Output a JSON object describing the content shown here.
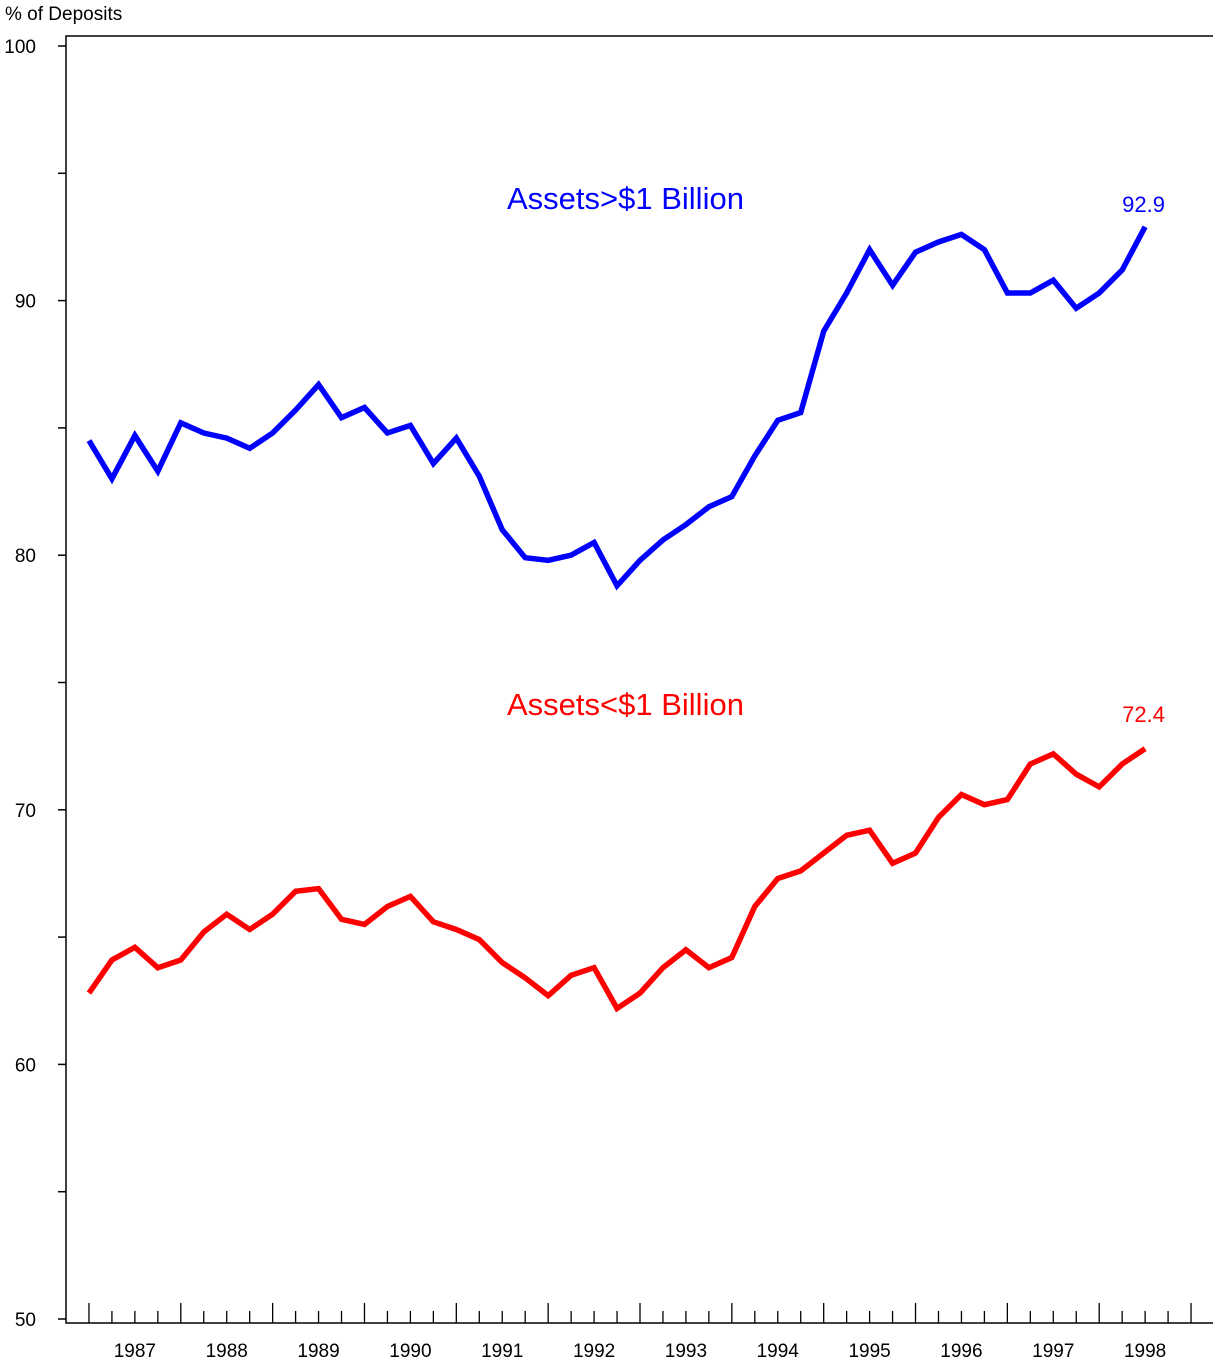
{
  "chart_data": {
    "type": "line",
    "ylabel": "% of Deposits",
    "ylim": [
      50,
      100
    ],
    "y_ticks_major": [
      50,
      60,
      70,
      80,
      90,
      100
    ],
    "y_ticks_minor": [
      55,
      65,
      75,
      85,
      95
    ],
    "xlim": [
      1986.5,
      1999.0
    ],
    "x_year_labels": [
      "1987",
      "1988",
      "1989",
      "1990",
      "1991",
      "1992",
      "1993",
      "1994",
      "1995",
      "1996",
      "1997",
      "1998"
    ],
    "grid": false,
    "series": [
      {
        "name": "Assets>$1 Billion",
        "color": "#0000ff",
        "end_label": "92.9",
        "x": [
          1986.75,
          1987.0,
          1987.25,
          1987.5,
          1987.75,
          1988.0,
          1988.25,
          1988.5,
          1988.75,
          1989.0,
          1989.25,
          1989.5,
          1989.75,
          1990.0,
          1990.25,
          1990.5,
          1990.75,
          1991.0,
          1991.25,
          1991.5,
          1991.75,
          1992.0,
          1992.25,
          1992.5,
          1992.75,
          1993.0,
          1993.25,
          1993.5,
          1993.75,
          1994.0,
          1994.25,
          1994.5,
          1994.75,
          1995.0,
          1995.25,
          1995.5,
          1995.75,
          1996.0,
          1996.25,
          1996.5,
          1996.75,
          1997.0,
          1997.25,
          1997.5,
          1997.75,
          1998.0,
          1998.25
        ],
        "values": [
          84.5,
          83.0,
          84.7,
          83.3,
          85.2,
          84.8,
          84.6,
          84.2,
          84.8,
          85.7,
          86.7,
          85.4,
          85.8,
          84.8,
          85.1,
          83.6,
          84.6,
          83.1,
          81.0,
          79.9,
          79.8,
          80.0,
          80.5,
          78.8,
          79.8,
          80.6,
          81.2,
          81.9,
          82.3,
          83.9,
          85.3,
          85.6,
          88.8,
          90.3,
          92.0,
          90.6,
          91.9,
          92.3,
          92.6,
          92.0,
          90.3,
          90.3,
          90.8,
          89.7,
          90.3,
          91.2,
          92.9
        ]
      },
      {
        "name": "Assets<$1 Billion",
        "color": "#ff0000",
        "end_label": "72.4",
        "x": [
          1986.75,
          1987.0,
          1987.25,
          1987.5,
          1987.75,
          1988.0,
          1988.25,
          1988.5,
          1988.75,
          1989.0,
          1989.25,
          1989.5,
          1989.75,
          1990.0,
          1990.25,
          1990.5,
          1990.75,
          1991.0,
          1991.25,
          1991.5,
          1991.75,
          1992.0,
          1992.25,
          1992.5,
          1992.75,
          1993.0,
          1993.25,
          1993.5,
          1993.75,
          1994.0,
          1994.25,
          1994.5,
          1994.75,
          1995.0,
          1995.25,
          1995.5,
          1995.75,
          1996.0,
          1996.25,
          1996.5,
          1996.75,
          1997.0,
          1997.25,
          1997.5,
          1997.75,
          1998.0,
          1998.25
        ],
        "values": [
          62.8,
          64.1,
          64.6,
          63.8,
          64.1,
          65.2,
          65.9,
          65.3,
          65.9,
          66.8,
          66.9,
          65.7,
          65.5,
          66.2,
          66.6,
          65.6,
          65.3,
          64.9,
          64.0,
          63.4,
          62.7,
          63.5,
          63.8,
          62.2,
          62.8,
          63.8,
          64.5,
          63.8,
          64.2,
          66.2,
          67.3,
          67.6,
          68.3,
          69.0,
          69.2,
          67.9,
          68.3,
          69.7,
          70.6,
          70.2,
          70.4,
          71.8,
          72.2,
          71.4,
          70.9,
          71.8,
          72.4
        ]
      }
    ]
  }
}
